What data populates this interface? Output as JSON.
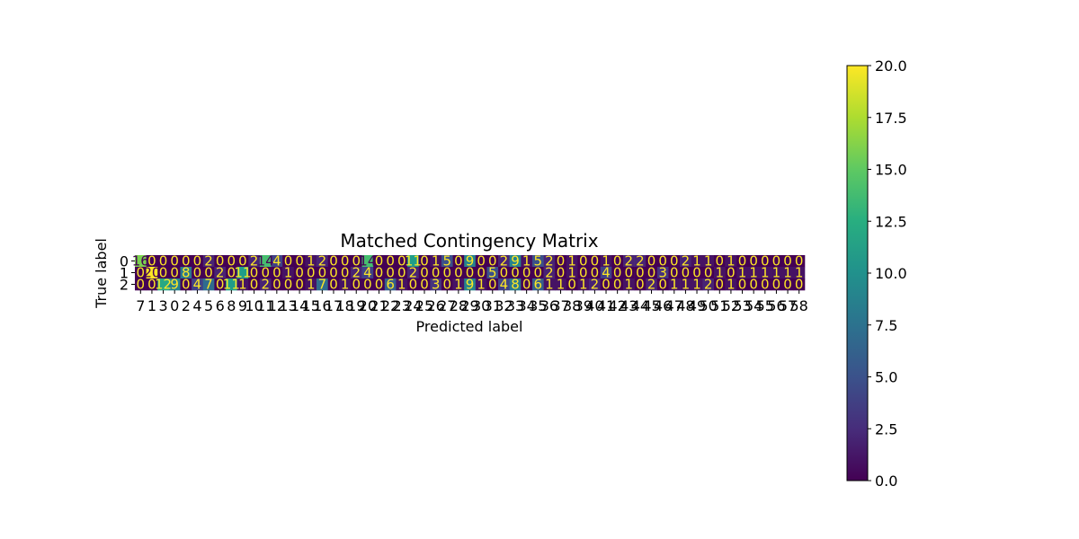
{
  "chart_data": {
    "type": "heatmap",
    "title": "Matched Contingency Matrix",
    "xlabel": "Predicted label",
    "ylabel": "True label",
    "row_labels": [
      "0",
      "1",
      "2"
    ],
    "col_labels": [
      "7",
      "1",
      "3",
      "0",
      "2",
      "4",
      "5",
      "6",
      "8",
      "9",
      "10",
      "11",
      "12",
      "13",
      "14",
      "15",
      "16",
      "17",
      "18",
      "19",
      "20",
      "21",
      "22",
      "23",
      "24",
      "25",
      "26",
      "27",
      "28",
      "29",
      "30",
      "31",
      "32",
      "33",
      "34",
      "35",
      "36",
      "37",
      "38",
      "39",
      "40",
      "41",
      "42",
      "43",
      "44",
      "45",
      "46",
      "47",
      "48",
      "49",
      "50",
      "51",
      "52",
      "53",
      "54",
      "55",
      "56",
      "57",
      "58"
    ],
    "values": [
      [
        16,
        0,
        0,
        0,
        0,
        0,
        2,
        0,
        0,
        0,
        2,
        14,
        4,
        0,
        0,
        1,
        2,
        0,
        0,
        0,
        14,
        0,
        0,
        0,
        11,
        0,
        1,
        5,
        0,
        9,
        0,
        0,
        2,
        9,
        1,
        5,
        2,
        0,
        1,
        0,
        0,
        1,
        0,
        2,
        2,
        0,
        0,
        0,
        2,
        1,
        1,
        0,
        1,
        0,
        0,
        0,
        0,
        0,
        0
      ],
      [
        0,
        20,
        0,
        0,
        8,
        0,
        0,
        2,
        0,
        11,
        0,
        0,
        0,
        1,
        0,
        0,
        0,
        0,
        0,
        2,
        4,
        0,
        0,
        0,
        2,
        0,
        0,
        0,
        0,
        0,
        0,
        5,
        0,
        0,
        0,
        0,
        2,
        0,
        1,
        0,
        0,
        4,
        0,
        0,
        0,
        0,
        3,
        0,
        0,
        0,
        0,
        1,
        0,
        1,
        1,
        1,
        1,
        1,
        1
      ],
      [
        0,
        0,
        12,
        9,
        0,
        4,
        7,
        0,
        11,
        1,
        0,
        2,
        0,
        0,
        0,
        1,
        7,
        0,
        1,
        0,
        0,
        0,
        6,
        1,
        0,
        0,
        3,
        0,
        1,
        9,
        1,
        0,
        4,
        8,
        0,
        6,
        1,
        1,
        0,
        1,
        2,
        0,
        0,
        1,
        0,
        2,
        0,
        1,
        1,
        1,
        2,
        0,
        1,
        0,
        0,
        0,
        0,
        0,
        0
      ]
    ],
    "vmin": 0,
    "vmax": 20,
    "colormap": "viridis",
    "colorbar_ticks": [
      "0.0",
      "2.5",
      "5.0",
      "7.5",
      "10.0",
      "12.5",
      "15.0",
      "17.5",
      "20.0"
    ],
    "grid": false
  }
}
